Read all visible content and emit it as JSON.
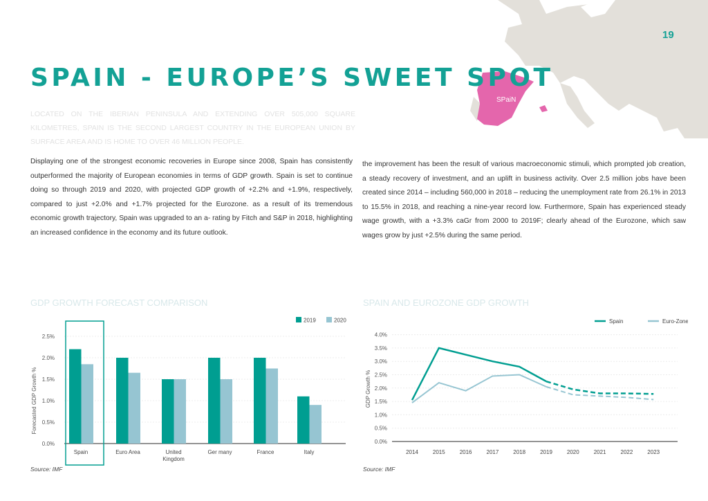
{
  "page_number": "19",
  "title": "SPAIN - EUROPE’S SWEET SPOT",
  "map_label": "SPaiN",
  "intro": "Located on the Iberian Peninsula and extending over 505,000 square kilometres, Spain is the second largest country in the European Union by surface area and is home to over 46 million people.",
  "body_left": "Displaying one of the strongest economic recoveries in Europe since 2008, Spain has consistently outperformed the majority of European economies in terms of GDP growth. Spain is set to continue doing so through 2019 and 2020, with projected GDP growth of +2.2% and +1.9%, respectively, compared to just +2.0% and +1.7% projected for the Eurozone. as a result of its tremendous economic growth trajectory, Spain was upgraded to an a- rating by Fitch and S&P in 2018, highlighting an increased confidence in the economy and its future outlook.",
  "body_right": "the improvement has been the result of various macroeconomic stimuli, which prompted job creation, a steady recovery of investment, and an uplift in business activity. Over 2.5 million jobs have been created since 2014 – including 560,000 in 2018 – reducing the unemployment rate from 26.1% in 2013 to 15.5% in 2018, and reaching a nine-year record low. Furthermore, Spain has experienced steady wage growth, with a +3.3% caGr from 2000 to 2019F; clearly ahead of the Eurozone, which saw wages grow by just +2.5% during the same period.",
  "colors": {
    "teal": "#009e91",
    "light_blue": "#96c5d2",
    "pink": "#e466ac",
    "map_gray": "#e3e0da"
  },
  "chart_data": [
    {
      "type": "bar",
      "title": "GDP GROWTH FORECAST COMPARISON",
      "ylabel": "Forecasted GDP Growth %",
      "xlabel": "",
      "categories": [
        "Spain",
        "Euro Area",
        "United Kingdom",
        "Ger many",
        "France",
        "Italy"
      ],
      "series": [
        {
          "name": "2019",
          "values": [
            2.2,
            2.0,
            1.5,
            2.0,
            2.0,
            1.1
          ]
        },
        {
          "name": "2020",
          "values": [
            1.85,
            1.65,
            1.5,
            1.5,
            1.75,
            0.9
          ]
        }
      ],
      "yticks": [
        "0.0%",
        "0.5%",
        "1.0%",
        "1.5%",
        "2.0%",
        "2.5%"
      ],
      "ylim": [
        0,
        2.5
      ],
      "highlight": "Spain",
      "legend": "top-right",
      "grid": true,
      "source": "Source: IMF"
    },
    {
      "type": "line",
      "title": "SPAIN AND EUROZONE GDP GROWTH",
      "ylabel": "GDP Growth %",
      "xlabel": "",
      "x": [
        "2014",
        "2015",
        "2016",
        "2017",
        "2018",
        "2019",
        "2020",
        "2021",
        "2022",
        "2023"
      ],
      "forecast_from": "2019",
      "series": [
        {
          "name": "Spain",
          "values": [
            1.55,
            3.5,
            3.25,
            3.0,
            2.8,
            2.25,
            1.95,
            1.8,
            1.8,
            1.78
          ]
        },
        {
          "name": "Euro-Zone",
          "values": [
            1.45,
            2.2,
            1.9,
            2.45,
            2.5,
            2.05,
            1.75,
            1.7,
            1.65,
            1.57
          ]
        }
      ],
      "yticks": [
        "0.0%",
        "0.5%",
        "1.0%",
        "1.5%",
        "2.0%",
        "2.5%",
        "3.0%",
        "3.5%",
        "4.0%"
      ],
      "ylim": [
        0,
        4
      ],
      "legend": "top-right",
      "grid": true,
      "source": "Source: IMF"
    }
  ]
}
